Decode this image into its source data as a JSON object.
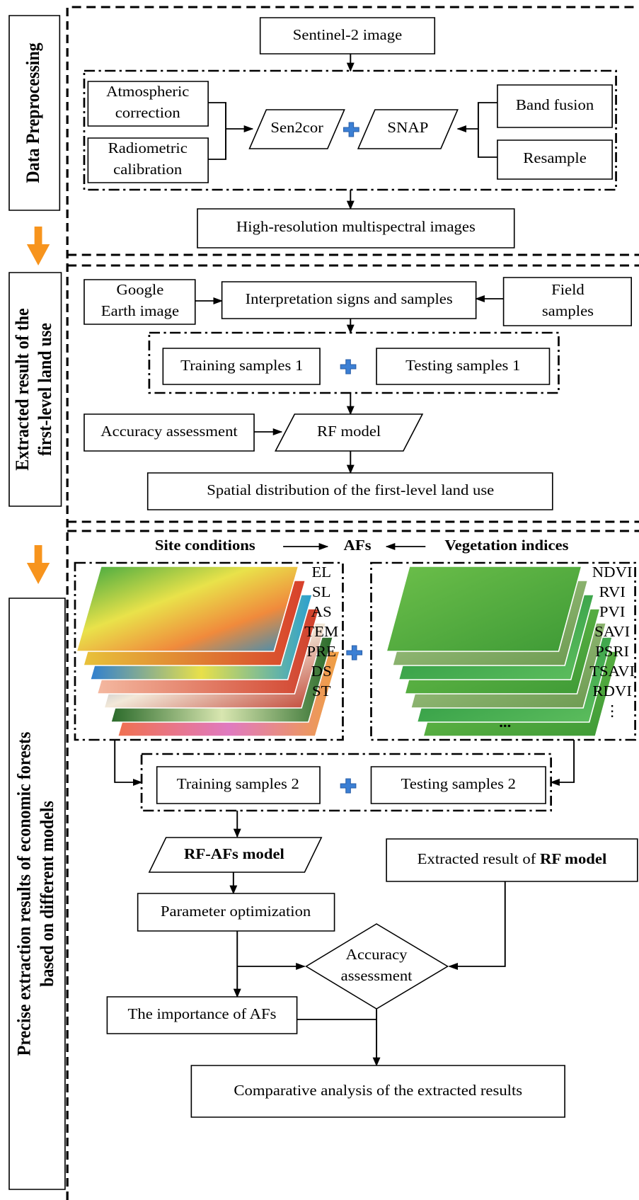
{
  "sections": [
    {
      "label": [
        "Data Preprocessing"
      ]
    },
    {
      "label": [
        "Extracted result of the",
        "first-level land use"
      ]
    },
    {
      "label": [
        "Precise extraction results  of  economic forests",
        "based on different models"
      ]
    }
  ],
  "nodes": {
    "sentinel": "Sentinel-2 image",
    "atmos": [
      "Atmospheric",
      "correction"
    ],
    "radio": [
      "Radiometric",
      "calibration"
    ],
    "sen2cor": "Sen2cor",
    "snap": "SNAP",
    "band": "Band fusion",
    "resample": "Resample",
    "highres": "High-resolution multispectral images",
    "google": [
      "Google",
      "Earth image"
    ],
    "interp": "Interpretation signs and samples",
    "field": [
      "Field",
      "samples"
    ],
    "train1": "Training samples 1",
    "test1": "Testing  samples 1",
    "acc1": "Accuracy assessment",
    "rf": "RF model",
    "spatial": "Spatial distribution of the first-level land use",
    "site": "Site conditions",
    "afs": "AFs",
    "veg": "Vegetation indices",
    "site_factors": [
      "EL",
      "SL",
      "AS",
      "TEM",
      "PRE",
      "DS",
      "ST"
    ],
    "veg_indices": [
      "NDVI",
      "RVI",
      "PVI",
      "SAVI",
      "PSRI",
      "TSAVI",
      "RDVI",
      "⋮"
    ],
    "more": "...",
    "train2": "Training samples 2",
    "test2": "Testing samples 2",
    "rfafs": "RF-AFs model",
    "extracted": [
      "Extracted result of ",
      "RF model"
    ],
    "param": "Parameter optimization",
    "acc2": [
      "Accuracy",
      "assessment"
    ],
    "importance": "The importance of AFs",
    "compare": "Comparative analysis of the extracted results"
  }
}
